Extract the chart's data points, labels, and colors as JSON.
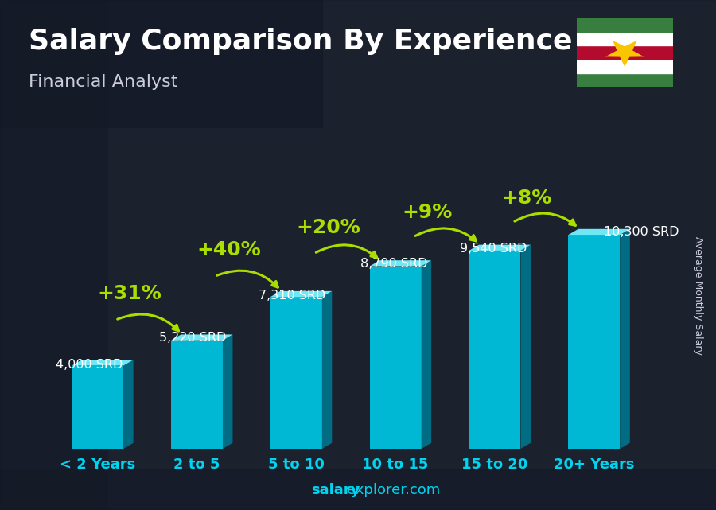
{
  "title": "Salary Comparison By Experience",
  "subtitle": "Financial Analyst",
  "ylabel": "Average Monthly Salary",
  "footer_bold": "salary",
  "footer_normal": "explorer.com",
  "categories": [
    "< 2 Years",
    "2 to 5",
    "5 to 10",
    "10 to 15",
    "15 to 20",
    "20+ Years"
  ],
  "values": [
    4000,
    5220,
    7310,
    8790,
    9540,
    10300
  ],
  "labels": [
    "4,000 SRD",
    "5,220 SRD",
    "7,310 SRD",
    "8,790 SRD",
    "9,540 SRD",
    "10,300 SRD"
  ],
  "pct_changes": [
    "+31%",
    "+40%",
    "+20%",
    "+9%",
    "+8%"
  ],
  "bar_front": "#00b8d4",
  "bar_top": "#6ee8f5",
  "bar_side": "#006d85",
  "bg_dark": "#1a2035",
  "text_white": "#ffffff",
  "text_cyan": "#00d4f0",
  "accent_green": "#aadd00",
  "subtitle_color": "#ccccdd",
  "title_fontsize": 26,
  "subtitle_fontsize": 16,
  "label_fontsize": 11.5,
  "pct_fontsize": 18,
  "tick_fontsize": 13,
  "footer_fontsize": 13,
  "ylabel_fontsize": 9,
  "flag_colors": [
    "#377e3f",
    "#ffffff",
    "#b40a2d",
    "#ffffff",
    "#377e3f"
  ],
  "flag_star_color": "#f9c400"
}
